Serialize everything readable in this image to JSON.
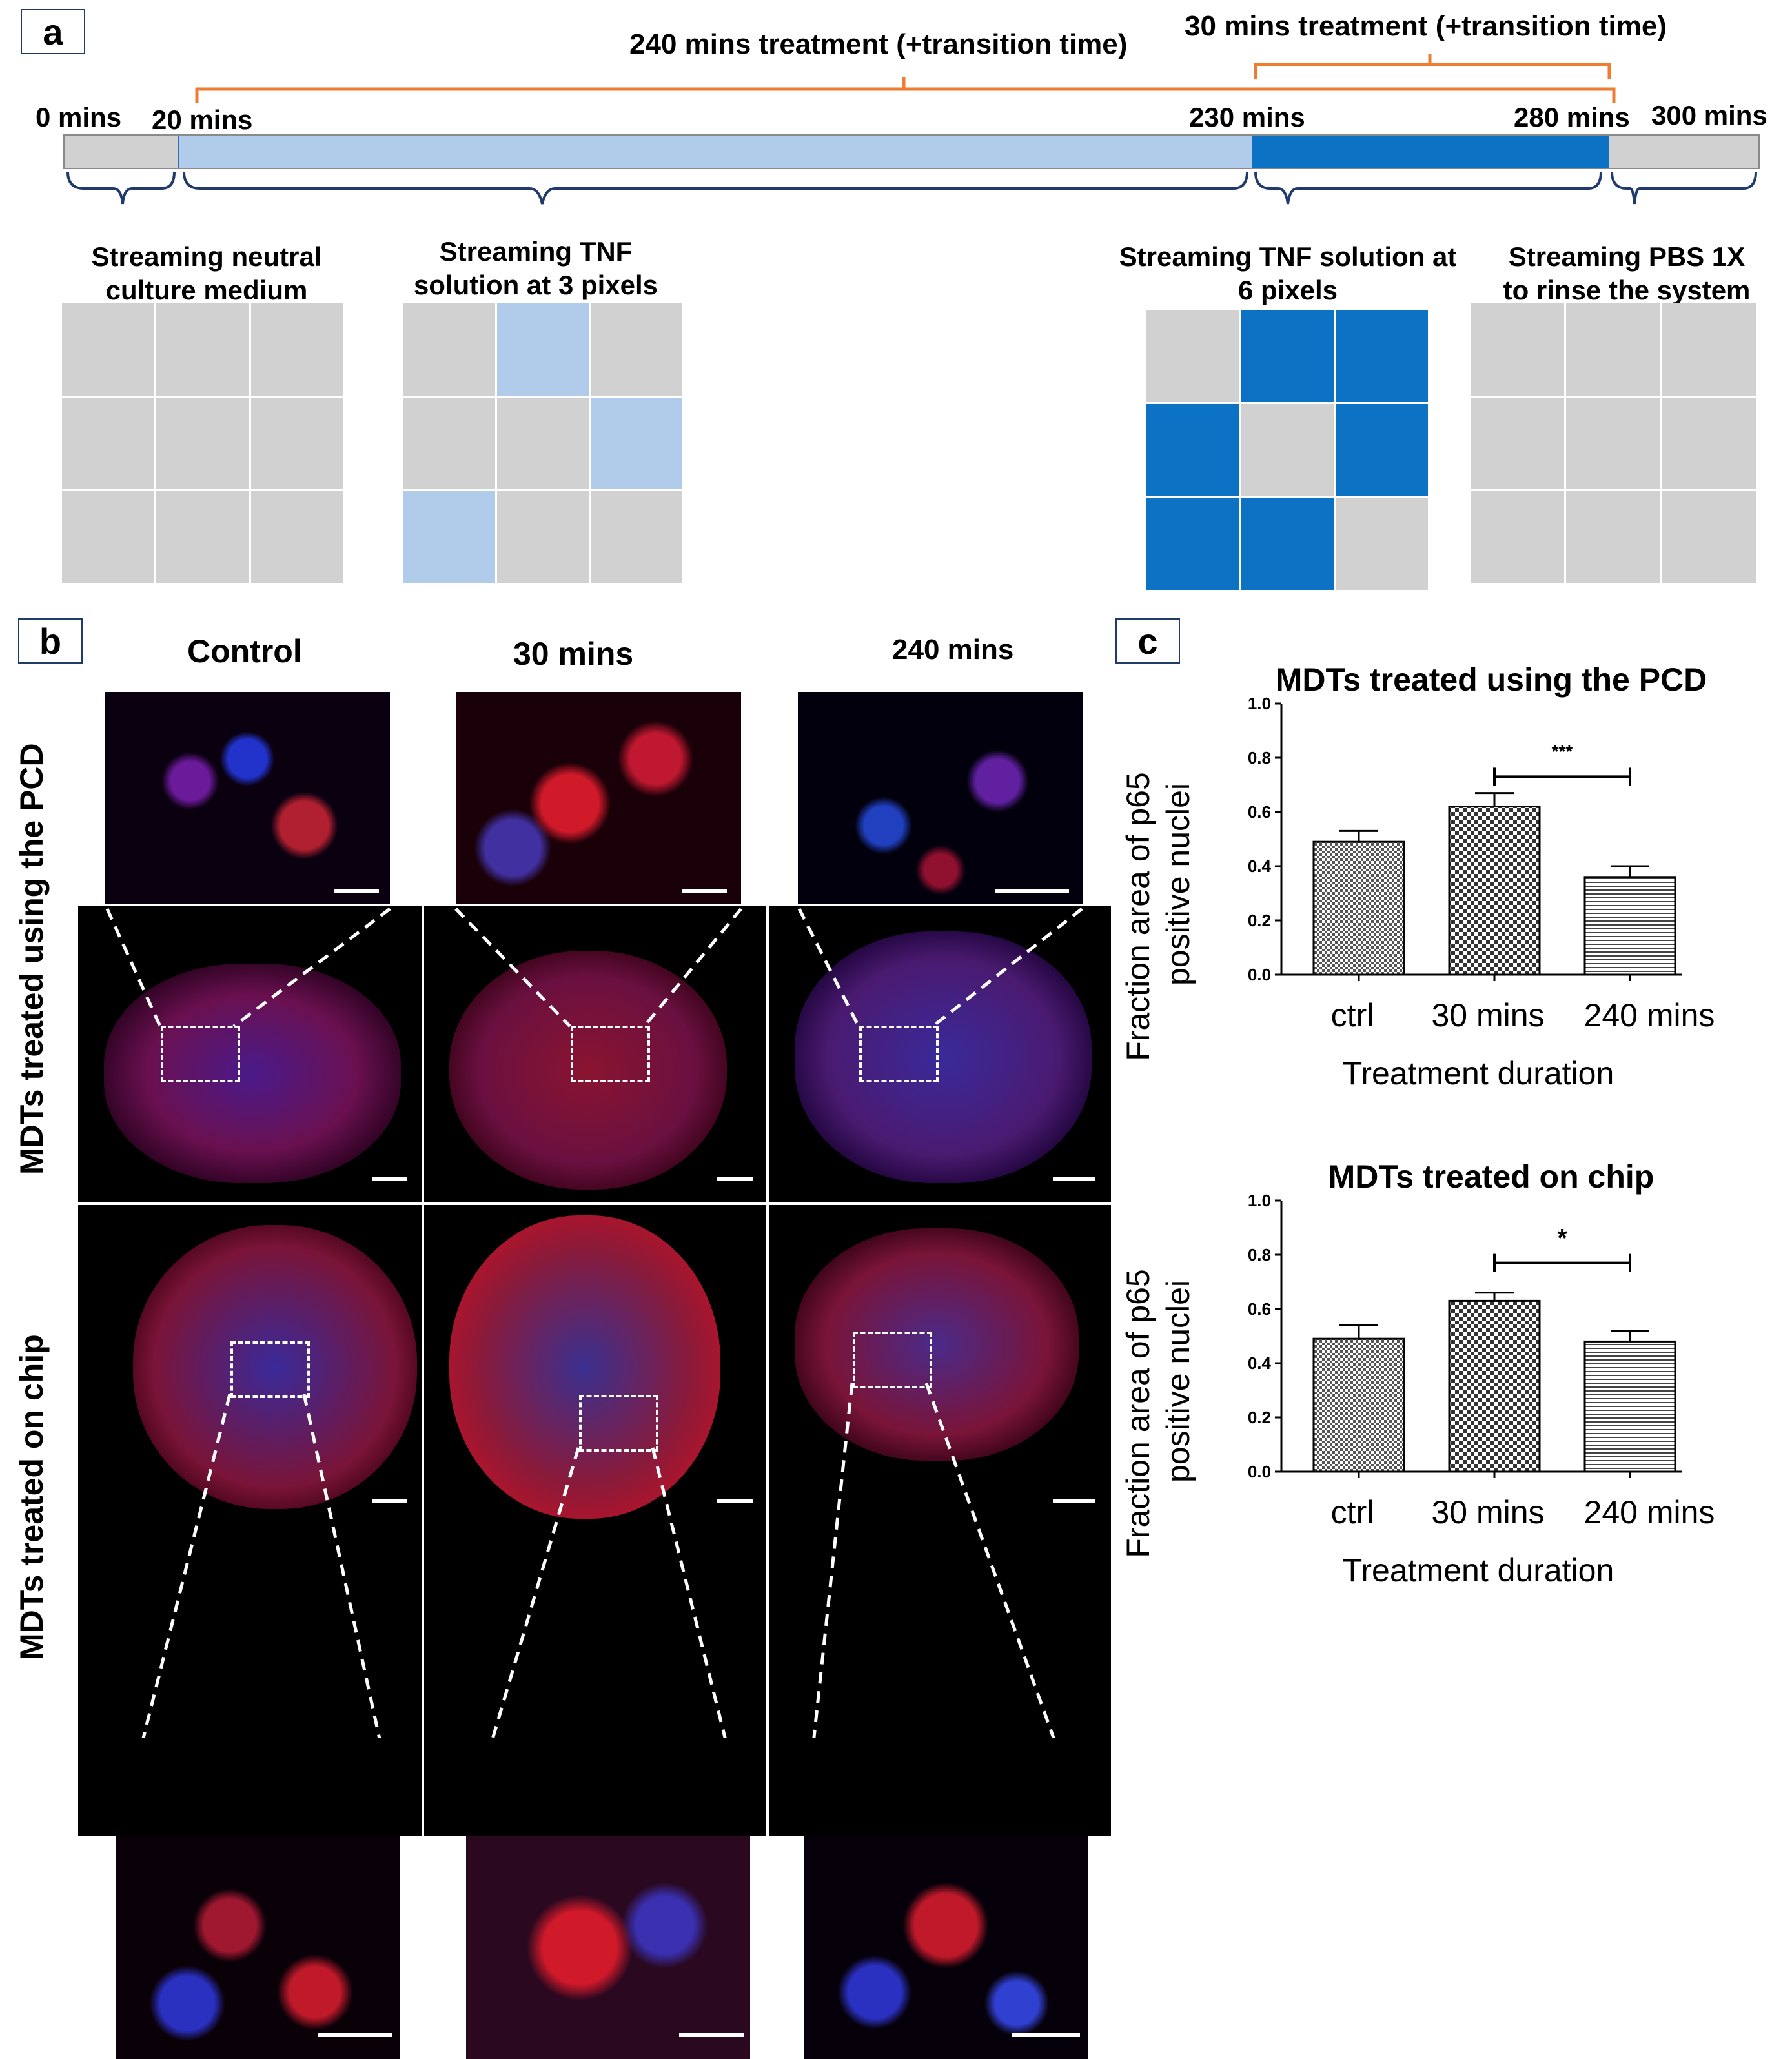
{
  "panels": {
    "a": "a",
    "b": "b",
    "c": "c"
  },
  "timeline": {
    "brace_240": "240 mins treatment (+transition time)",
    "brace_30": "30 mins treatment (+transition time)",
    "t0": "0 mins",
    "t20": "20 mins",
    "t230": "230 mins",
    "t280": "280 mins",
    "t300": "300 mins",
    "colors": {
      "neutral": "#d1d1d1",
      "light_tnf": "#b1cbea",
      "dark_tnf": "#0b72c4",
      "brace_orange": "#ee7d31",
      "brace_navy": "#1f3a6b"
    }
  },
  "steps": [
    {
      "title_l1": "Streaming neutral",
      "title_l2": "culture medium",
      "pattern": [
        0,
        0,
        0,
        0,
        0,
        0,
        0,
        0,
        0
      ]
    },
    {
      "title_l1": "Streaming TNF",
      "title_l2": "solution at 3 pixels",
      "pattern": [
        0,
        1,
        0,
        0,
        0,
        1,
        1,
        0,
        0
      ]
    },
    {
      "title_l1": "Streaming TNF solution at",
      "title_l2": "6 pixels",
      "pattern": [
        0,
        2,
        2,
        2,
        0,
        2,
        2,
        2,
        0
      ]
    },
    {
      "title_l1": "Streaming PBS 1X",
      "title_l2": "to rinse the system",
      "pattern": [
        0,
        0,
        0,
        0,
        0,
        0,
        0,
        0,
        0
      ]
    }
  ],
  "micrographs": {
    "columns": [
      "Control",
      "30 mins",
      "240 mins"
    ],
    "rows": [
      "MDTs  treated using the PCD",
      "MDTs treated on chip"
    ]
  },
  "chart_data": [
    {
      "type": "bar",
      "title": "MDTs treated using the PCD",
      "categories": [
        "ctrl",
        "30 mins",
        "240 mins"
      ],
      "values": [
        0.49,
        0.62,
        0.36
      ],
      "errors": [
        0.04,
        0.05,
        0.04
      ],
      "xlabel": "Treatment duration",
      "ylabel_l1": "Fraction area of p65",
      "ylabel_l2": "positive nuclei",
      "ylim": [
        0,
        1.0
      ],
      "yticks": [
        "0.0",
        "0.2",
        "0.4",
        "0.6",
        "0.8",
        "1.0"
      ],
      "significance": {
        "from": "30 mins",
        "to": "240 mins",
        "label": "***"
      }
    },
    {
      "type": "bar",
      "title": "MDTs treated on chip",
      "categories": [
        "ctrl",
        "30 mins",
        "240 mins"
      ],
      "values": [
        0.49,
        0.63,
        0.48
      ],
      "errors": [
        0.05,
        0.03,
        0.04
      ],
      "xlabel": "Treatment duration",
      "ylabel_l1": "Fraction area of p65",
      "ylabel_l2": "positive nuclei",
      "ylim": [
        0,
        1.0
      ],
      "yticks": [
        "0.0",
        "0.2",
        "0.4",
        "0.6",
        "0.8",
        "1.0"
      ],
      "significance": {
        "from": "30 mins",
        "to": "240 mins",
        "label": "*"
      }
    }
  ]
}
